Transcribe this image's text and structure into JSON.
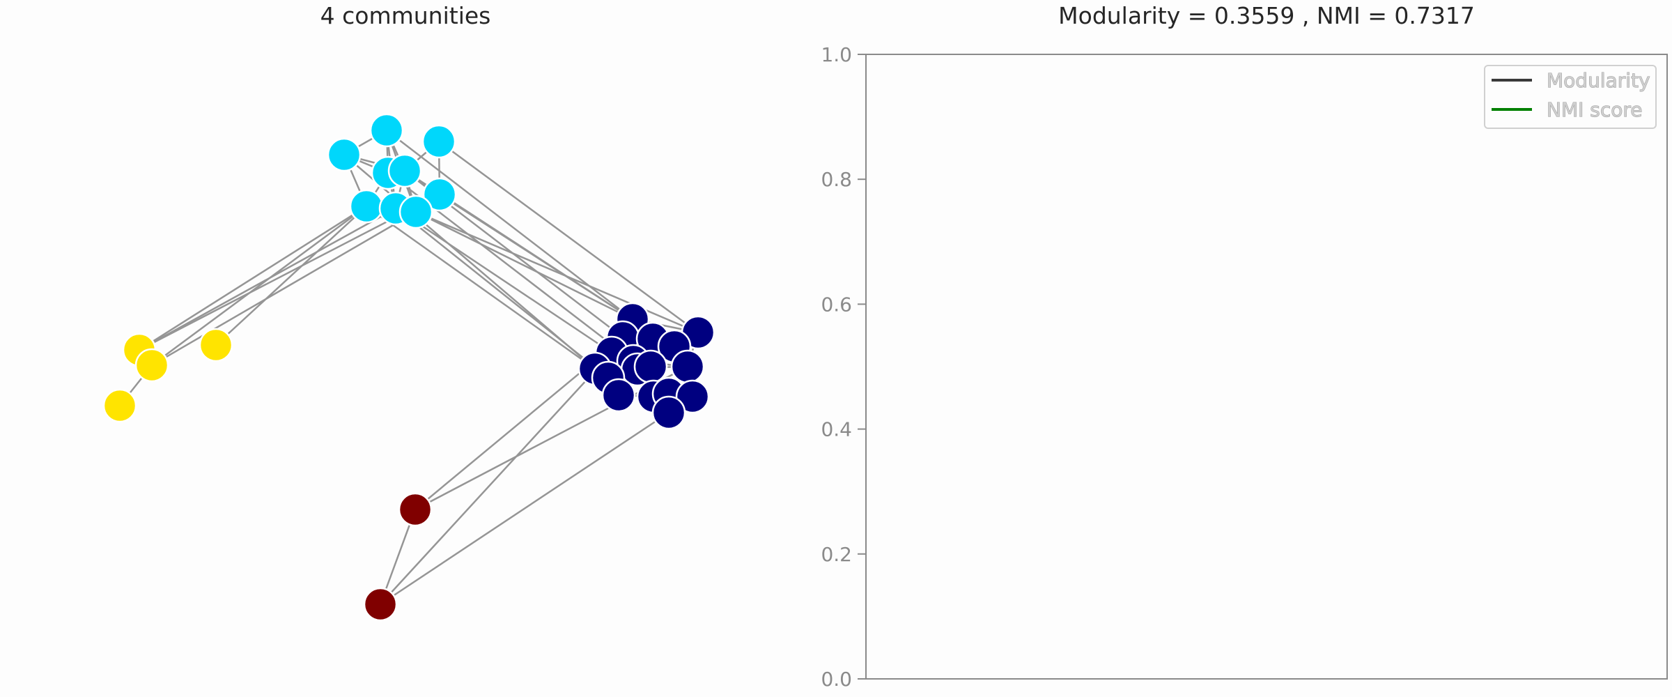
{
  "figure": {
    "left_title": "4 communities",
    "right_title": "Modularity = 0.3559 , NMI = 0.7317"
  },
  "colors": {
    "community_0": "#00d7fb",
    "community_1": "#ffe400",
    "community_2": "#000080",
    "community_3": "#800000",
    "edge": "#959595",
    "node_outline": "#ffffff",
    "modularity_line": "#3a3a3a",
    "nmi_line": "#008000",
    "axis": "#8a8a8a"
  },
  "chart_data": [
    {
      "type": "network",
      "title": "4 communities",
      "communities": [
        {
          "id": 0,
          "color": "#00d7fb"
        },
        {
          "id": 1,
          "color": "#ffe400"
        },
        {
          "id": 2,
          "color": "#000080"
        },
        {
          "id": 3,
          "color": "#800000"
        }
      ]
    },
    {
      "type": "line",
      "title": "Modularity = 0.3559 , NMI = 0.7317",
      "xlabel": "",
      "ylabel": "",
      "ylim": [
        0,
        1
      ],
      "yticks": [
        "0.0",
        "0.2",
        "0.4",
        "0.6",
        "0.8",
        "1.0"
      ],
      "xticks": [],
      "grid": false,
      "legend_position": "top-right",
      "series": [
        {
          "name": "Modularity",
          "color": "#3a3a3a",
          "values": []
        },
        {
          "name": "NMI score",
          "color": "#008000",
          "values": []
        }
      ]
    }
  ]
}
